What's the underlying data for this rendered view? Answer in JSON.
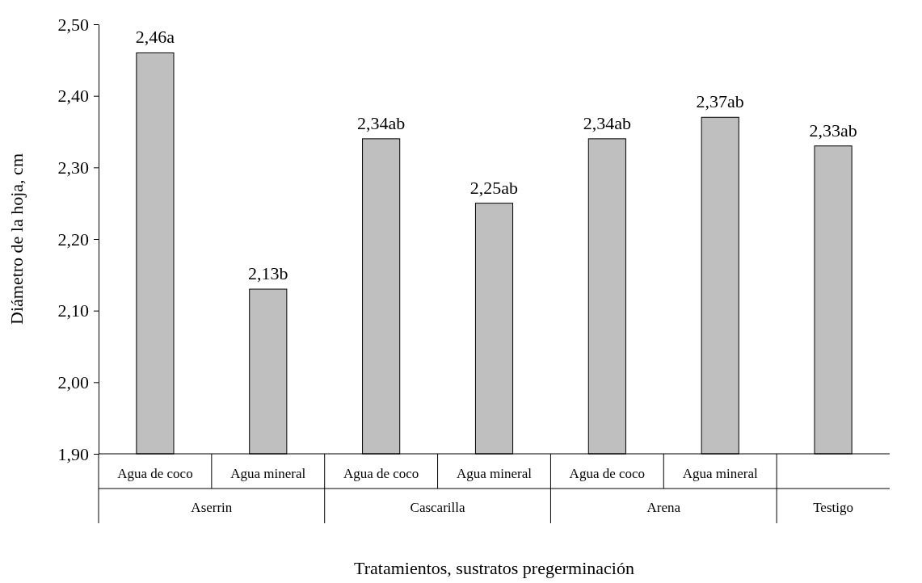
{
  "chart_data": {
    "type": "bar",
    "categories": [
      "Agua de coco",
      "Agua mineral",
      "Agua de coco",
      "Agua mineral",
      "Agua de coco",
      "Agua mineral",
      null
    ],
    "values": [
      2.46,
      2.13,
      2.34,
      2.25,
      2.34,
      2.37,
      2.33
    ],
    "value_labels": [
      "2,46a",
      "2,13b",
      "2,34ab",
      "2,25ab",
      "2,34ab",
      "2,37ab",
      "2,33ab"
    ],
    "color": "#bfbfbf",
    "ylim": [
      1.9,
      2.5
    ],
    "yticks": [
      {
        "value": 1.9,
        "label": "1,90"
      },
      {
        "value": 2.0,
        "label": "2,00"
      },
      {
        "value": 2.1,
        "label": "2,10"
      },
      {
        "value": 2.2,
        "label": "2,20"
      },
      {
        "value": 2.3,
        "label": "2,30"
      },
      {
        "value": 2.4,
        "label": "2,40"
      },
      {
        "value": 2.5,
        "label": "2,50"
      }
    ],
    "ylabel": "Diámetro de la hoja, cm",
    "xlabel": "Tratamientos, sustratos pregerminación",
    "annotations": [
      "Aserrin",
      "Cascarilla",
      "Arena",
      "Testigo"
    ],
    "grid": false
  }
}
